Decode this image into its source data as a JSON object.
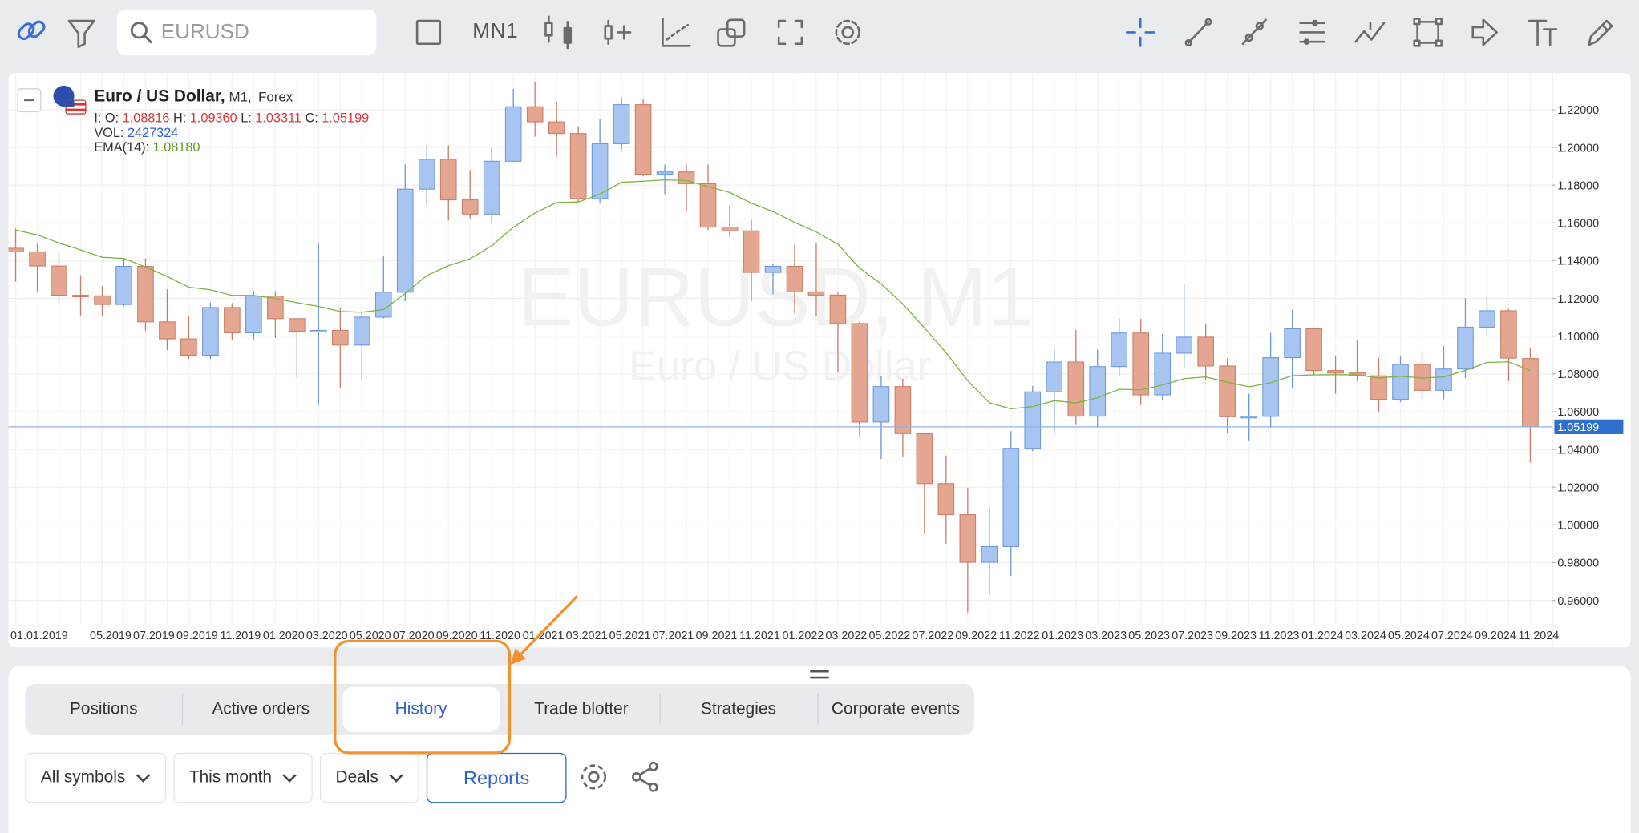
{
  "toolbar": {
    "search_placeholder": "EURUSD",
    "timeframe": "MN1"
  },
  "chart_data": {
    "type": "candlestick",
    "title": "Euro / US Dollar,",
    "timeframe": "M1,",
    "market": "Forex",
    "watermark": "EURUSD, M1",
    "watermark_subtitle": "Euro / US Dollar",
    "legend": {
      "ohlc_prefix": "I: O:",
      "open": "1.08816",
      "high_label": "H:",
      "high": "1.09360",
      "low_label": "L:",
      "low": "1.03311",
      "close_label": "C:",
      "close": "1.05199",
      "vol_label": "VOL:",
      "vol": "2427324",
      "ema_label": "EMA(14):",
      "ema": "1.08180"
    },
    "categories": [
      "01.01.2019",
      null,
      null,
      null,
      "05.2019",
      null,
      "07.2019",
      null,
      "09.2019",
      null,
      "11.2019",
      null,
      "01.2020",
      null,
      "03.2020",
      null,
      "05.2020",
      null,
      "07.2020",
      null,
      "09.2020",
      null,
      "11.2020",
      null,
      "01.2021",
      null,
      "03.2021",
      null,
      "05.2021",
      null,
      "07.2021",
      null,
      "09.2021",
      null,
      "11.2021",
      null,
      "01.2022",
      null,
      "03.2022",
      null,
      "05.2022",
      null,
      "07.2022",
      null,
      "09.2022",
      null,
      "11.2022",
      null,
      "01.2023",
      null,
      "03.2023",
      null,
      "05.2023",
      null,
      "07.2023",
      null,
      "09.2023",
      null,
      "11.2023",
      null,
      "01.2024",
      null,
      "03.2024",
      null,
      "05.2024",
      null,
      "07.2024",
      null,
      "09.2024",
      null,
      "11.2024"
    ],
    "open": [
      1.1466,
      1.1447,
      1.1372,
      1.1217,
      1.1214,
      1.1168,
      1.137,
      1.1076,
      1.0986,
      1.0899,
      1.1152,
      1.1018,
      1.1213,
      1.1093,
      1.1026,
      1.1031,
      1.0953,
      1.1101,
      1.1233,
      1.1779,
      1.1937,
      1.1722,
      1.1647,
      1.1927,
      1.2216,
      1.2136,
      1.2074,
      1.1729,
      1.202,
      1.2227,
      1.1858,
      1.187,
      1.1808,
      1.1578,
      1.1558,
      1.1338,
      1.137,
      1.1235,
      1.1218,
      1.1067,
      1.0545,
      1.0733,
      1.0484,
      1.0219,
      1.0054,
      0.9802,
      0.9885,
      1.0406,
      1.0705,
      1.0863,
      1.0576,
      1.0839,
      1.1017,
      1.0689,
      1.091,
      1.0995,
      1.0842,
      1.0573,
      1.0575,
      1.0886,
      1.1039,
      1.0818,
      1.0805,
      1.079,
      1.0665,
      1.085,
      1.0713,
      1.0826,
      1.1048,
      1.1135,
      1.08816
    ],
    "high": [
      1.157,
      1.1489,
      1.1449,
      1.1324,
      1.1265,
      1.1412,
      1.1412,
      1.1249,
      1.1109,
      1.1179,
      1.1175,
      1.1239,
      1.1239,
      1.1095,
      1.1495,
      1.1147,
      1.1137,
      1.1422,
      1.1909,
      1.2011,
      1.2011,
      1.1881,
      1.2004,
      1.231,
      1.2349,
      1.2243,
      1.2113,
      1.215,
      1.2266,
      1.2254,
      1.1909,
      1.1909,
      1.1909,
      1.1692,
      1.1616,
      1.1386,
      1.1482,
      1.1495,
      1.1234,
      1.1076,
      1.0787,
      1.0774,
      1.0486,
      1.0368,
      1.0198,
      1.0094,
      1.0497,
      1.0736,
      1.0929,
      1.1033,
      1.0929,
      1.1095,
      1.1092,
      1.1012,
      1.1276,
      1.1064,
      1.0882,
      1.0695,
      1.1017,
      1.114,
      1.1046,
      1.0898,
      1.0981,
      1.0885,
      1.0895,
      1.0916,
      1.0948,
      1.1202,
      1.1214,
      1.1145,
      1.0936
    ],
    "low": [
      1.1289,
      1.1234,
      1.1176,
      1.111,
      1.1107,
      1.116,
      1.1028,
      1.0926,
      1.0879,
      1.0879,
      1.0981,
      1.0981,
      1.0992,
      1.0778,
      1.0636,
      1.0727,
      1.0766,
      1.1095,
      1.1185,
      1.1696,
      1.1612,
      1.1622,
      1.1603,
      1.1924,
      1.2058,
      1.1952,
      1.1704,
      1.1703,
      1.1986,
      1.1847,
      1.1752,
      1.1664,
      1.1563,
      1.1524,
      1.1186,
      1.1221,
      1.1121,
      1.1106,
      1.0806,
      1.0471,
      1.0349,
      1.0359,
      0.9952,
      0.9901,
      0.9536,
      0.9632,
      0.973,
      1.0391,
      1.0482,
      1.0533,
      1.0516,
      1.0788,
      1.0635,
      1.0662,
      1.0834,
      1.0766,
      1.0488,
      1.0448,
      1.0516,
      1.0723,
      1.0795,
      1.0695,
      1.0762,
      1.0601,
      1.065,
      1.0668,
      1.0666,
      1.0777,
      1.1002,
      1.0761,
      1.03311
    ],
    "close": [
      1.1447,
      1.1372,
      1.1217,
      1.1214,
      1.1168,
      1.137,
      1.1076,
      1.0986,
      1.0899,
      1.1152,
      1.1018,
      1.1213,
      1.1093,
      1.1026,
      1.1031,
      1.0953,
      1.1101,
      1.1233,
      1.1779,
      1.1937,
      1.1722,
      1.1647,
      1.1927,
      1.2216,
      1.2136,
      1.2074,
      1.1729,
      1.202,
      1.2227,
      1.1858,
      1.187,
      1.1808,
      1.1578,
      1.1558,
      1.1338,
      1.137,
      1.1235,
      1.1218,
      1.1067,
      1.0545,
      1.0733,
      1.0484,
      1.0219,
      1.0054,
      0.9802,
      0.9885,
      1.0406,
      1.0705,
      1.0863,
      1.0576,
      1.0839,
      1.1017,
      1.0689,
      1.091,
      1.0995,
      1.0842,
      1.0573,
      1.0575,
      1.0886,
      1.1039,
      1.0818,
      1.0805,
      1.079,
      1.0665,
      1.085,
      1.0713,
      1.0826,
      1.1048,
      1.1135,
      1.0884,
      1.05199
    ],
    "colors": {
      "up": "#a8c5f2",
      "up_edge": "#6b97dc",
      "down": "#e4a591",
      "down_edge": "#c97b66"
    },
    "ema": {
      "name": "EMA(14)",
      "color": "#7cb342",
      "values": [
        1.1562,
        1.1537,
        1.1494,
        1.1457,
        1.1418,
        1.1412,
        1.1367,
        1.1316,
        1.126,
        1.1246,
        1.1216,
        1.1216,
        1.12,
        1.1177,
        1.1158,
        1.1131,
        1.1127,
        1.1141,
        1.1226,
        1.1321,
        1.1374,
        1.141,
        1.1479,
        1.1577,
        1.1652,
        1.1708,
        1.1711,
        1.1752,
        1.1815,
        1.1821,
        1.1828,
        1.1825,
        1.1792,
        1.1761,
        1.1705,
        1.166,
        1.1603,
        1.1552,
        1.1487,
        1.1361,
        1.1277,
        1.1171,
        1.1044,
        1.0912,
        1.0764,
        1.0647,
        1.0615,
        1.0627,
        1.0658,
        1.0647,
        1.0673,
        1.0719,
        1.0715,
        1.0741,
        1.0775,
        1.0784,
        1.0756,
        1.0732,
        1.0753,
        1.0791,
        1.0795,
        1.0796,
        1.0795,
        1.0778,
        1.0788,
        1.0778,
        1.0784,
        1.0819,
        1.0861,
        1.0864,
        1.0818
      ]
    },
    "ylim": [
      0.9473,
      1.2383
    ],
    "yticks": [
      {
        "value": 0.96,
        "label": "0.96000"
      },
      {
        "value": 0.98,
        "label": "0.98000"
      },
      {
        "value": 1.0,
        "label": "1.00000"
      },
      {
        "value": 1.02,
        "label": "1.02000"
      },
      {
        "value": 1.04,
        "label": "1.04000"
      },
      {
        "value": 1.06,
        "label": "1.06000"
      },
      {
        "value": 1.08,
        "label": "1.08000"
      },
      {
        "value": 1.1,
        "label": "1.10000"
      },
      {
        "value": 1.12,
        "label": "1.12000"
      },
      {
        "value": 1.14,
        "label": "1.14000"
      },
      {
        "value": 1.16,
        "label": "1.16000"
      },
      {
        "value": 1.18,
        "label": "1.18000"
      },
      {
        "value": 1.2,
        "label": "1.20000"
      },
      {
        "value": 1.22,
        "label": "1.22000"
      }
    ],
    "current_price": 1.05199,
    "current_price_color": "#2f6fd0",
    "grid": true
  },
  "panel": {
    "tabs": [
      "Positions",
      "Active orders",
      "History",
      "Trade blotter",
      "Strategies",
      "Corporate events"
    ],
    "active_tab": 2,
    "filters": [
      "All symbols",
      "This month",
      "Deals"
    ],
    "reports": "Reports"
  }
}
